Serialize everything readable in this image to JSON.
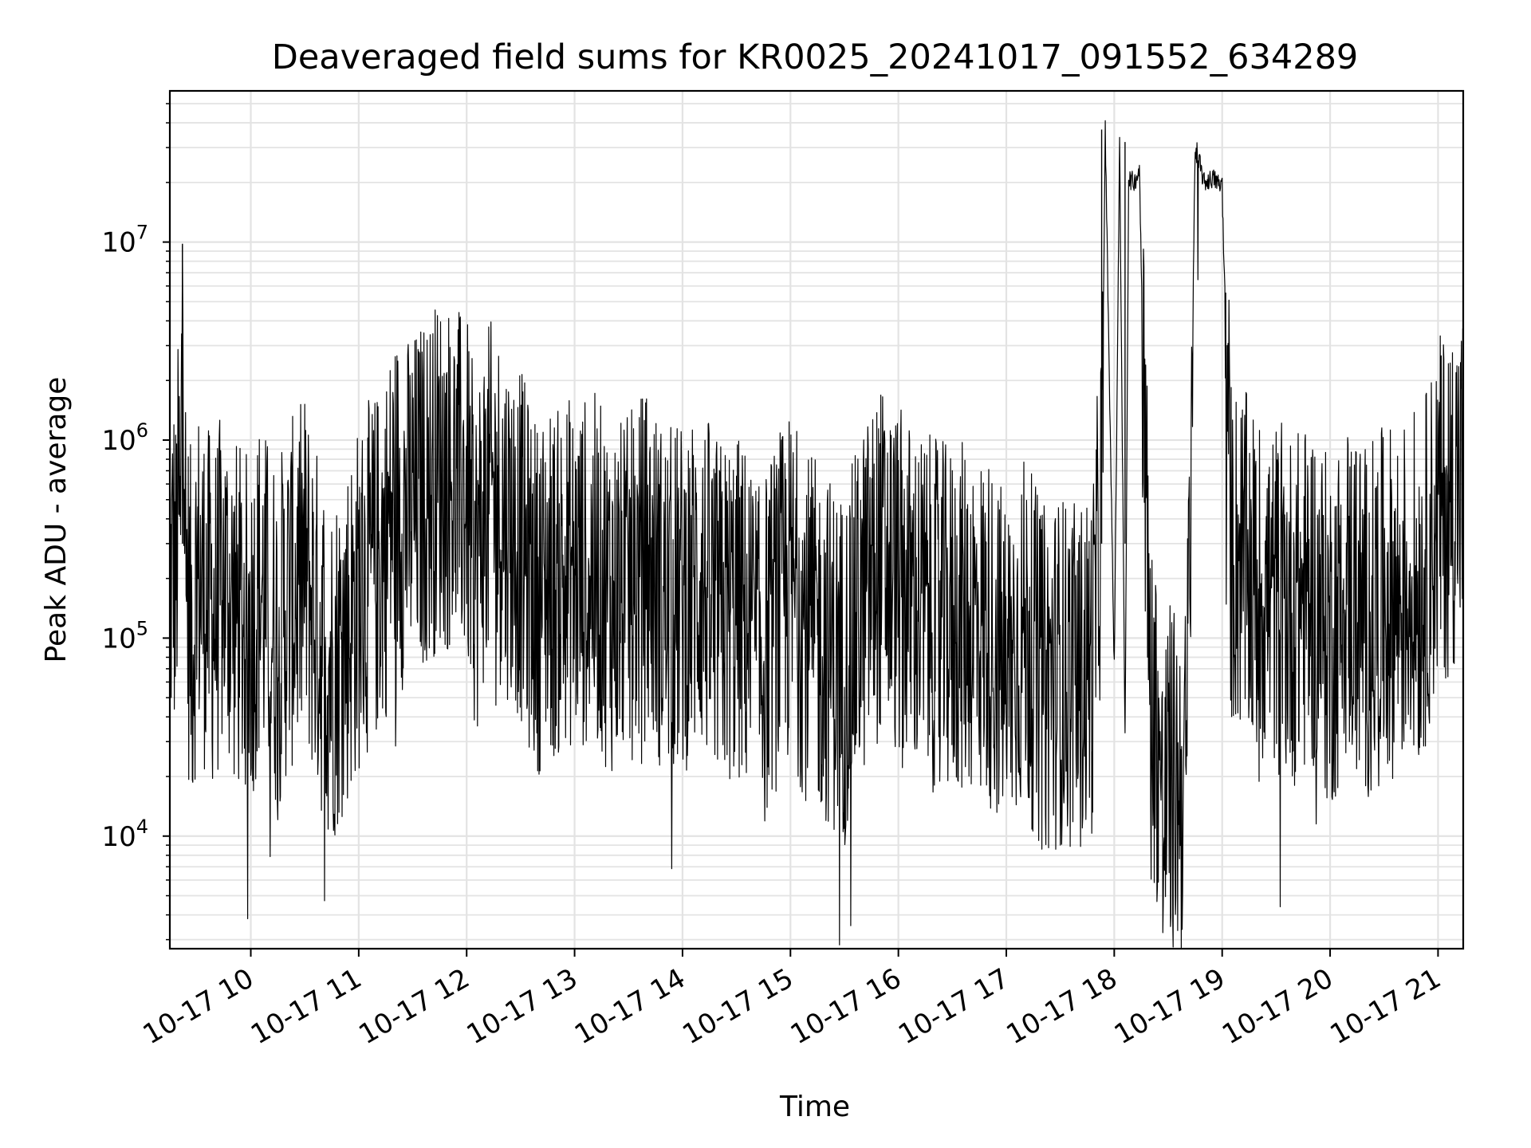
{
  "chart_data": {
    "type": "line",
    "title": "Deaveraged field sums for KR0025_20241017_091552_634289",
    "xlabel": "Time",
    "ylabel": "Peak ADU - average",
    "y_scale": "log",
    "ylim": [
      2700,
      58000000
    ],
    "xlim": [
      "2024-10-17 09:15",
      "2024-10-17 21:14"
    ],
    "grid": true,
    "line_color": "#000000",
    "x_tick_labels": [
      "10-17 10",
      "10-17 11",
      "10-17 12",
      "10-17 13",
      "10-17 14",
      "10-17 15",
      "10-17 16",
      "10-17 17",
      "10-17 18",
      "10-17 19",
      "10-17 20",
      "10-17 21"
    ],
    "x_tick_values": [
      "2024-10-17 10:00",
      "2024-10-17 11:00",
      "2024-10-17 12:00",
      "2024-10-17 13:00",
      "2024-10-17 14:00",
      "2024-10-17 15:00",
      "2024-10-17 16:00",
      "2024-10-17 17:00",
      "2024-10-17 18:00",
      "2024-10-17 19:00",
      "2024-10-17 20:00",
      "2024-10-17 21:00"
    ],
    "y_ticks": [
      {
        "value": 10000,
        "base": "10",
        "exp": "4"
      },
      {
        "value": 100000,
        "base": "10",
        "exp": "5"
      },
      {
        "value": 1000000,
        "base": "10",
        "exp": "6"
      },
      {
        "value": 10000000,
        "base": "10",
        "exp": "7"
      }
    ],
    "series": [
      {
        "x": [
          "2024-10-17 09:15",
          "2024-10-17 09:17",
          "2024-10-17 09:18",
          "2024-10-17 09:20",
          "2024-10-17 09:21",
          "2024-10-17 09:22",
          "2024-10-17 09:24",
          "2024-10-17 09:26",
          "2024-10-17 09:28",
          "2024-10-17 09:30",
          "2024-10-17 09:35",
          "2024-10-17 09:40",
          "2024-10-17 09:45",
          "2024-10-17 09:50",
          "2024-10-17 09:55",
          "2024-10-17 10:00",
          "2024-10-17 10:05",
          "2024-10-17 10:10",
          "2024-10-17 10:15",
          "2024-10-17 10:20",
          "2024-10-17 10:27",
          "2024-10-17 10:30",
          "2024-10-17 10:35",
          "2024-10-17 10:40",
          "2024-10-17 10:45",
          "2024-10-17 10:50",
          "2024-10-17 10:55",
          "2024-10-17 11:00",
          "2024-10-17 11:05",
          "2024-10-17 11:10",
          "2024-10-17 11:15",
          "2024-10-17 11:20",
          "2024-10-17 11:25",
          "2024-10-17 11:30",
          "2024-10-17 11:35",
          "2024-10-17 11:40",
          "2024-10-17 11:45",
          "2024-10-17 11:50",
          "2024-10-17 11:55",
          "2024-10-17 12:00",
          "2024-10-17 12:05",
          "2024-10-17 12:10",
          "2024-10-17 12:15",
          "2024-10-17 12:20",
          "2024-10-17 12:25",
          "2024-10-17 12:30",
          "2024-10-17 12:35",
          "2024-10-17 12:40",
          "2024-10-17 12:45",
          "2024-10-17 12:50",
          "2024-10-17 12:55",
          "2024-10-17 13:00",
          "2024-10-17 13:10",
          "2024-10-17 13:20",
          "2024-10-17 13:30",
          "2024-10-17 13:40",
          "2024-10-17 13:50",
          "2024-10-17 14:00",
          "2024-10-17 14:10",
          "2024-10-17 14:20",
          "2024-10-17 14:30",
          "2024-10-17 14:40",
          "2024-10-17 14:43",
          "2024-10-17 14:50",
          "2024-10-17 15:00",
          "2024-10-17 15:10",
          "2024-10-17 15:20",
          "2024-10-17 15:30",
          "2024-10-17 15:40",
          "2024-10-17 15:50",
          "2024-10-17 16:00",
          "2024-10-17 16:10",
          "2024-10-17 16:20",
          "2024-10-17 16:30",
          "2024-10-17 16:40",
          "2024-10-17 16:50",
          "2024-10-17 17:00",
          "2024-10-17 17:10",
          "2024-10-17 17:20",
          "2024-10-17 17:30",
          "2024-10-17 17:40",
          "2024-10-17 17:48",
          "2024-10-17 17:53",
          "2024-10-17 17:55",
          "2024-10-17 18:00",
          "2024-10-17 18:03",
          "2024-10-17 18:06",
          "2024-10-17 18:08",
          "2024-10-17 18:11",
          "2024-10-17 18:14",
          "2024-10-17 18:20",
          "2024-10-17 18:25",
          "2024-10-17 18:27",
          "2024-10-17 18:30",
          "2024-10-17 18:35",
          "2024-10-17 18:40",
          "2024-10-17 18:45",
          "2024-10-17 18:50",
          "2024-10-17 18:55",
          "2024-10-17 19:00",
          "2024-10-17 19:05",
          "2024-10-17 19:10",
          "2024-10-17 19:20",
          "2024-10-17 19:30",
          "2024-10-17 19:40",
          "2024-10-17 19:50",
          "2024-10-17 20:00",
          "2024-10-17 20:10",
          "2024-10-17 20:20",
          "2024-10-17 20:30",
          "2024-10-17 20:40",
          "2024-10-17 20:45",
          "2024-10-17 20:50",
          "2024-10-17 21:00",
          "2024-10-17 21:05",
          "2024-10-17 21:10",
          "2024-10-17 21:14"
        ],
        "y": [
          150000,
          300000,
          160000,
          550000,
          230000,
          9800000,
          200000,
          130000,
          100000,
          220000,
          160000,
          130000,
          200000,
          140000,
          120000,
          110000,
          180000,
          130000,
          100000,
          150000,
          190000,
          230000,
          140000,
          90000,
          70000,
          90000,
          120000,
          160000,
          200000,
          230000,
          300000,
          500000,
          420000,
          450000,
          520000,
          600000,
          700000,
          650000,
          600000,
          550000,
          230000,
          480000,
          520000,
          430000,
          350000,
          300000,
          200000,
          160000,
          210000,
          180000,
          230000,
          200000,
          230000,
          160000,
          170000,
          240000,
          150000,
          160000,
          200000,
          130000,
          140000,
          110000,
          70000,
          120000,
          180000,
          110000,
          90000,
          70000,
          150000,
          250000,
          190000,
          150000,
          130000,
          120000,
          130000,
          110000,
          70000,
          110000,
          60000,
          70000,
          60000,
          80000,
          550000,
          37000000,
          70000,
          32000000,
          30000,
          21000000,
          20000000,
          23000000,
          50000,
          30000,
          10000,
          20000,
          18000,
          20000,
          30000000,
          20000000,
          21000000,
          19000000,
          270000,
          250000,
          170000,
          160000,
          140000,
          170000,
          100000,
          180000,
          120000,
          150000,
          160000,
          200000,
          170000,
          420000,
          500000,
          600000,
          650000
        ]
      }
    ]
  }
}
